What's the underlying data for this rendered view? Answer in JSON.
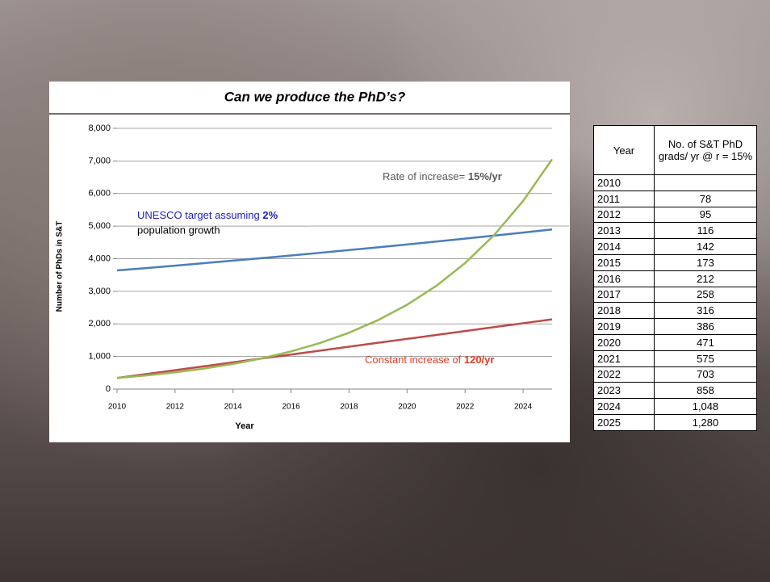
{
  "chart_data": {
    "type": "line",
    "title": "Can we produce the PhD’s?",
    "x_label": "Year",
    "y_label": "Number of PhDs in S&T",
    "x": [
      2010,
      2011,
      2012,
      2013,
      2014,
      2015,
      2016,
      2017,
      2018,
      2019,
      2020,
      2021,
      2022,
      2023,
      2024,
      2025
    ],
    "xlim": [
      2010,
      2025
    ],
    "xticks": [
      2010,
      2012,
      2014,
      2016,
      2018,
      2020,
      2022,
      2024
    ],
    "ylim": [
      0,
      8000
    ],
    "yticks": [
      0,
      {
        "value": 1000,
        "label": "1,000"
      },
      {
        "value": 2000,
        "label": "2,000"
      },
      {
        "value": 3000,
        "label": "3,000"
      },
      {
        "value": 4000,
        "label": "4,000"
      },
      {
        "value": 5000,
        "label": "5,000"
      },
      {
        "value": 6000,
        "label": "6,000"
      },
      {
        "value": 7000,
        "label": "7,000"
      },
      {
        "value": 8000,
        "label": "8,000"
      }
    ],
    "grid": true,
    "series": [
      {
        "color": "#4a7ebb",
        "values": [
          3640,
          3713,
          3787,
          3863,
          3940,
          4019,
          4099,
          4181,
          4265,
          4350,
          4437,
          4526,
          4617,
          4709,
          4803,
          4899
        ]
      },
      {
        "color": "#be4b48",
        "values": [
          340,
          460,
          580,
          700,
          820,
          940,
          1060,
          1180,
          1300,
          1420,
          1540,
          1660,
          1780,
          1900,
          2020,
          2140
        ]
      },
      {
        "color": "#98b954",
        "values": [
          340,
          418,
          513,
          629,
          771,
          944,
          1156,
          1414,
          1730,
          2116,
          2587,
          3162,
          3865,
          4723,
          5771,
          7051
        ]
      }
    ],
    "annotations": [
      {
        "text": "Rate of increase=",
        "bold": "15%/yr",
        "color": "#595959"
      },
      {
        "text": "UNESCO target assuming",
        "bold": "2%",
        "text2": "population growth",
        "color": "#2020c0"
      },
      {
        "text": "Constant increase of",
        "bold": "120/yr",
        "color": "#e03c28"
      }
    ]
  },
  "table": {
    "header": [
      "Year",
      "No. of S&T PhD grads/ yr @ r = 15%"
    ],
    "rows": [
      [
        "2010",
        null
      ],
      [
        "2011",
        "78"
      ],
      [
        "2012",
        "95"
      ],
      [
        "2013",
        "116"
      ],
      [
        "2014",
        "142"
      ],
      [
        "2015",
        "173"
      ],
      [
        "2016",
        "212"
      ],
      [
        "2017",
        "258"
      ],
      [
        "2018",
        "316"
      ],
      [
        "2019",
        "386"
      ],
      [
        "2020",
        "471"
      ],
      [
        "2021",
        "575"
      ],
      [
        "2022",
        "703"
      ],
      [
        "2023",
        "858"
      ],
      [
        "2024",
        "1,048"
      ],
      [
        "2025",
        "1,280"
      ]
    ]
  }
}
